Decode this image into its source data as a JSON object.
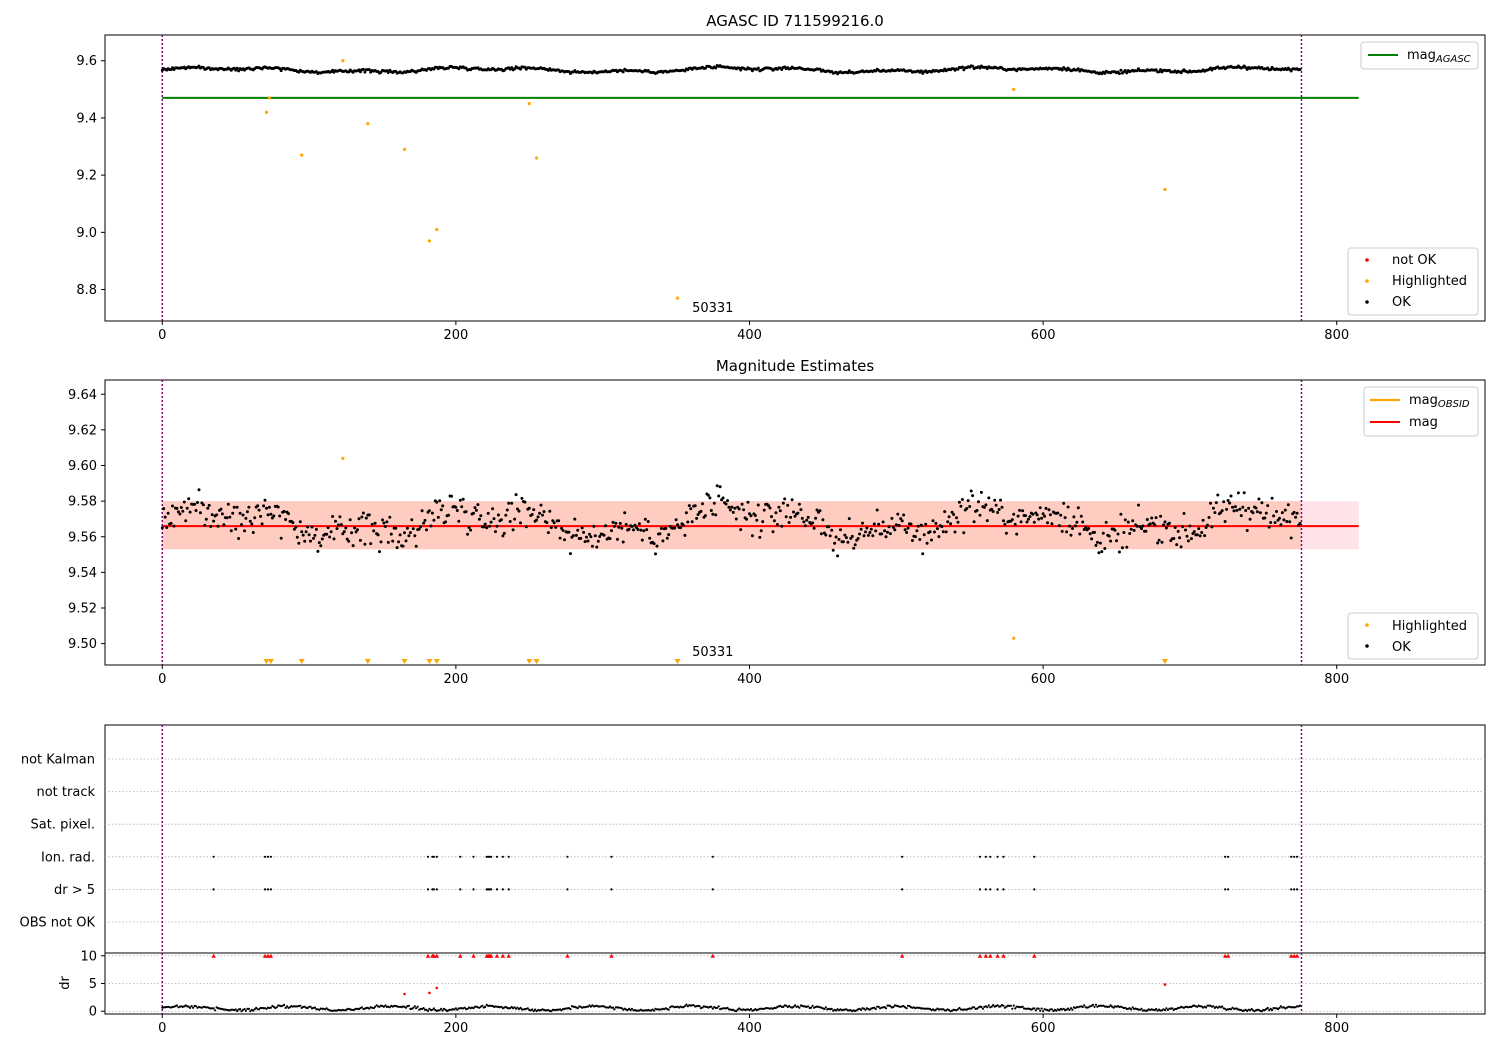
{
  "window": {
    "title": "AGASC ID 711599216.0"
  },
  "colors": {
    "ok": "#000000",
    "highlighted": "#ffa500",
    "not_ok": "#ff0000",
    "mag_agasc": "#008000",
    "mag_obsid": "#ffa500",
    "mag": "#ff0000",
    "band_outer": "#ffc0cb",
    "band_inner": "#ffa07a",
    "obs_boundary": "#800080"
  },
  "chart_data": [
    {
      "id": "agasc",
      "type": "scatter",
      "title": "AGASC ID 711599216.0",
      "annotation": "50331",
      "xlim": [
        -39,
        901
      ],
      "ylim": [
        8.69,
        9.69
      ],
      "xticks": [
        "0",
        "200",
        "400",
        "600",
        "800"
      ],
      "yticks": [
        "8.8",
        "9.0",
        "9.2",
        "9.4",
        "9.6"
      ],
      "mag_agasc": 9.47,
      "mag_agasc_range": [
        0,
        815
      ],
      "obs_boundaries": [
        0,
        776
      ],
      "ok_series": {
        "n": 776,
        "base": 9.568,
        "amplitude": 0.011,
        "noise": 0.006
      },
      "highlighted": [
        [
          71,
          9.42
        ],
        [
          73,
          9.47
        ],
        [
          95,
          9.27
        ],
        [
          123,
          9.6
        ],
        [
          140,
          9.38
        ],
        [
          165,
          9.29
        ],
        [
          182,
          8.97
        ],
        [
          187,
          9.01
        ],
        [
          250,
          9.45
        ],
        [
          255,
          9.26
        ],
        [
          351,
          8.77
        ],
        [
          580,
          9.5
        ],
        [
          683,
          9.15
        ]
      ],
      "legend_lines": [
        {
          "label": "mag",
          "sub": "AGASC",
          "color": "#008000"
        }
      ],
      "legend_points": [
        {
          "label": "not OK",
          "color": "#ff0000"
        },
        {
          "label": "Highlighted",
          "color": "#ffa500"
        },
        {
          "label": "OK",
          "color": "#000000"
        }
      ]
    },
    {
      "id": "estimates",
      "type": "scatter",
      "title": "Magnitude Estimates",
      "annotation": "50331",
      "xlim": [
        -39,
        901
      ],
      "ylim": [
        9.488,
        9.648
      ],
      "xticks": [
        "0",
        "200",
        "400",
        "600",
        "800"
      ],
      "yticks": [
        "9.50",
        "9.52",
        "9.54",
        "9.56",
        "9.58",
        "9.60",
        "9.62",
        "9.64"
      ],
      "mag": 9.566,
      "mag_band": [
        9.553,
        9.58
      ],
      "mag_obsid_band": [
        9.553,
        9.58
      ],
      "band_range": [
        0,
        815
      ],
      "obs_boundaries": [
        0,
        776
      ],
      "ok_series": {
        "n": 776,
        "base": 9.568,
        "amplitude": 0.011,
        "noise": 0.012
      },
      "highlighted_in_range": [
        [
          123,
          9.604
        ],
        [
          580,
          9.503
        ]
      ],
      "below_range_markers": [
        71,
        74,
        95,
        140,
        165,
        182,
        187,
        250,
        255,
        351,
        683
      ],
      "legend_lines": [
        {
          "label": "mag",
          "sub": "OBSID",
          "color": "#ffa500"
        },
        {
          "label": "mag",
          "sub": "",
          "color": "#ff0000"
        }
      ],
      "legend_points": [
        {
          "label": "Highlighted",
          "color": "#ffa500"
        },
        {
          "label": "OK",
          "color": "#000000"
        }
      ]
    },
    {
      "id": "flags",
      "type": "scatter",
      "xlim": [
        -39,
        901
      ],
      "rows": [
        "not Kalman",
        "not track",
        "Sat. pixel.",
        "Ion. rad.",
        "dr > 5",
        "OBS not OK"
      ],
      "flag_times": [
        35,
        70,
        72,
        74,
        181,
        184,
        185,
        187,
        203,
        212,
        221,
        222,
        223,
        224,
        228,
        232,
        236,
        276,
        306,
        375,
        504,
        557,
        561,
        564,
        569,
        573,
        594,
        724,
        726,
        769,
        771,
        773
      ],
      "obs_boundaries": [
        0,
        776
      ]
    },
    {
      "id": "dr",
      "type": "scatter",
      "ylabel": "dr",
      "xlim": [
        -39,
        901
      ],
      "ylim": [
        -0.5,
        10.5
      ],
      "xticks": [
        "0",
        "200",
        "400",
        "600",
        "800"
      ],
      "yticks": [
        "0",
        "5",
        "10"
      ],
      "clip_value": 10,
      "red_points": [
        [
          165,
          3.1
        ],
        [
          182,
          3.3
        ],
        [
          187,
          4.2
        ],
        [
          683,
          4.8
        ]
      ],
      "ok_series": {
        "n": 776
      },
      "obs_boundaries": [
        0,
        776
      ]
    }
  ]
}
